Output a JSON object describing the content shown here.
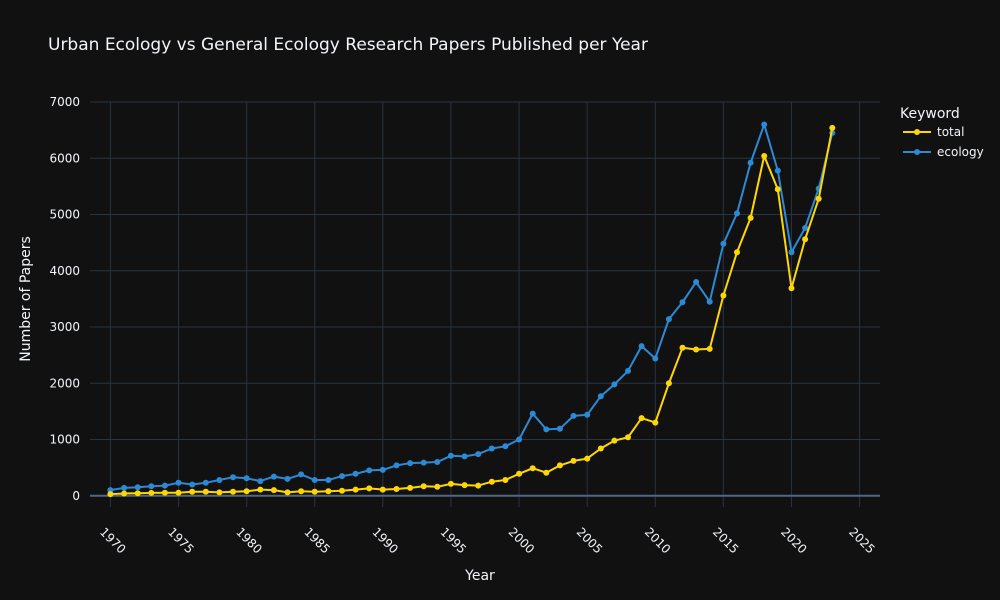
{
  "chart_data": {
    "type": "line",
    "title": "Urban Ecology vs General Ecology Research Papers Published per Year",
    "xlabel": "Year",
    "ylabel": "Number of Papers",
    "xlim": [
      1968.5,
      2026.5
    ],
    "ylim": [
      -200,
      7000
    ],
    "x_ticks": [
      "1970",
      "1975",
      "1980",
      "1985",
      "1990",
      "1995",
      "2000",
      "2005",
      "2010",
      "2015",
      "2020",
      "2025"
    ],
    "y_ticks": [
      "0",
      "1000",
      "2000",
      "3000",
      "4000",
      "5000",
      "6000",
      "7000"
    ],
    "grid": true,
    "legend": {
      "title": "Keyword",
      "position": "top-right"
    },
    "x": [
      1970,
      1971,
      1972,
      1973,
      1974,
      1975,
      1976,
      1977,
      1978,
      1979,
      1980,
      1981,
      1982,
      1983,
      1984,
      1985,
      1986,
      1987,
      1988,
      1989,
      1990,
      1991,
      1992,
      1993,
      1994,
      1995,
      1996,
      1997,
      1998,
      1999,
      2000,
      2001,
      2002,
      2003,
      2004,
      2005,
      2006,
      2007,
      2008,
      2009,
      2010,
      2011,
      2012,
      2013,
      2014,
      2015,
      2016,
      2017,
      2018,
      2019,
      2020,
      2021,
      2022,
      2023
    ],
    "series": [
      {
        "name": "total",
        "color": "#ffd700",
        "values": [
          30,
          40,
          45,
          50,
          55,
          55,
          70,
          70,
          60,
          70,
          80,
          110,
          100,
          60,
          80,
          70,
          80,
          90,
          110,
          130,
          110,
          120,
          140,
          170,
          160,
          210,
          190,
          180,
          250,
          280,
          390,
          490,
          410,
          540,
          620,
          660,
          840,
          980,
          1040,
          1380,
          1300,
          2000,
          2630,
          2600,
          2610,
          3560,
          4330,
          4940,
          6040,
          5450,
          3690,
          4560,
          5280,
          6540
        ]
      },
      {
        "name": "ecology",
        "color": "#2b8ad6",
        "values": [
          100,
          140,
          150,
          170,
          180,
          230,
          200,
          230,
          280,
          330,
          310,
          260,
          340,
          300,
          380,
          280,
          280,
          350,
          390,
          450,
          460,
          540,
          580,
          590,
          600,
          710,
          700,
          740,
          840,
          880,
          1000,
          1460,
          1180,
          1190,
          1420,
          1440,
          1770,
          1980,
          2220,
          2660,
          2440,
          3140,
          3440,
          3800,
          3450,
          4480,
          5020,
          5920,
          6600,
          5780,
          4330,
          4760,
          5460,
          6450
        ]
      }
    ]
  }
}
